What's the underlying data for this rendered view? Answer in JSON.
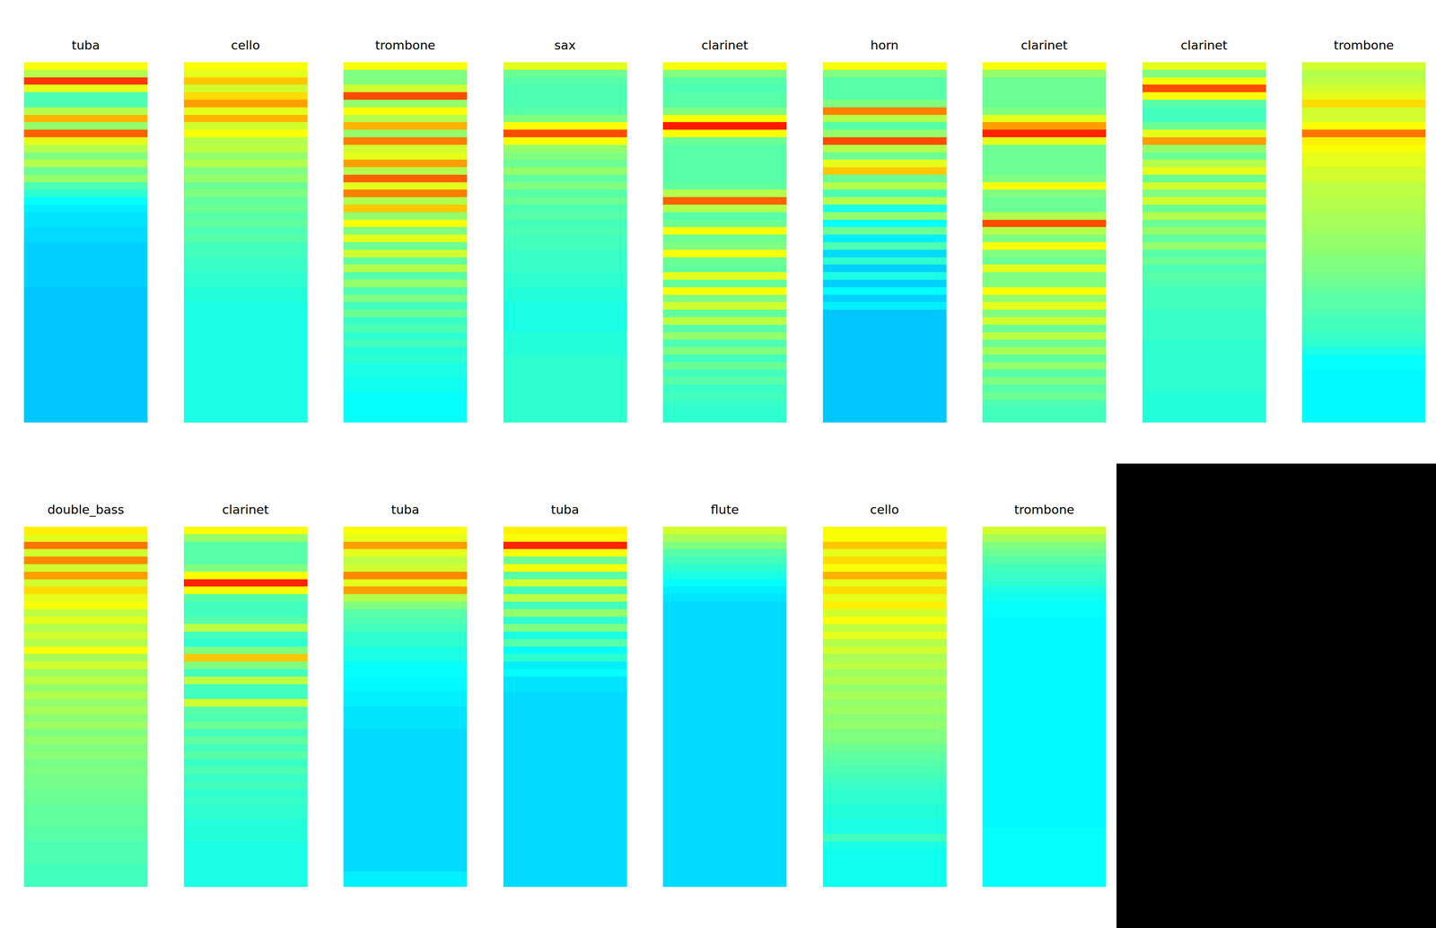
{
  "chart_data": [
    {
      "type": "heatmap",
      "title": "tuba",
      "zlim": [
        0,
        100
      ],
      "tick_labels": false,
      "values": [
        62,
        55,
        82,
        60,
        45,
        45,
        55,
        70,
        52,
        78,
        60,
        55,
        50,
        55,
        48,
        52,
        45,
        42,
        38,
        36,
        35,
        35,
        34,
        34,
        33,
        33,
        33,
        33,
        33,
        33,
        32,
        32,
        32,
        32,
        32,
        32,
        32,
        32,
        32,
        32,
        32,
        32,
        32,
        32,
        32,
        32,
        32,
        32
      ]
    },
    {
      "type": "heatmap",
      "title": "cello",
      "zlim": [
        0,
        100
      ],
      "tick_labels": false,
      "values": [
        62,
        60,
        68,
        58,
        66,
        72,
        60,
        70,
        58,
        62,
        55,
        56,
        52,
        55,
        50,
        52,
        48,
        50,
        47,
        48,
        46,
        47,
        45,
        46,
        44,
        44,
        43,
        43,
        42,
        42,
        41,
        41,
        40,
        40,
        40,
        40,
        40,
        40,
        40,
        40,
        40,
        40,
        40,
        40,
        40,
        40,
        40,
        40
      ]
    },
    {
      "type": "heatmap",
      "title": "trombone",
      "zlim": [
        0,
        100
      ],
      "tick_labels": false,
      "values": [
        62,
        50,
        50,
        58,
        80,
        52,
        62,
        55,
        70,
        52,
        75,
        58,
        60,
        72,
        55,
        78,
        60,
        75,
        55,
        68,
        52,
        62,
        50,
        60,
        48,
        58,
        47,
        55,
        46,
        52,
        45,
        50,
        44,
        48,
        43,
        45,
        42,
        44,
        41,
        42,
        40,
        40,
        39,
        39,
        38,
        38,
        38,
        38
      ]
    },
    {
      "type": "heatmap",
      "title": "sax",
      "zlim": [
        0,
        100
      ],
      "tick_labels": false,
      "values": [
        60,
        48,
        46,
        45,
        45,
        45,
        46,
        50,
        62,
        80,
        62,
        52,
        50,
        48,
        52,
        47,
        50,
        46,
        48,
        45,
        46,
        44,
        45,
        44,
        44,
        43,
        43,
        43,
        42,
        42,
        41,
        41,
        40,
        40,
        40,
        40,
        41,
        41,
        41,
        42,
        42,
        42,
        42,
        42,
        42,
        42,
        42,
        42
      ]
    },
    {
      "type": "heatmap",
      "title": "clarinet",
      "zlim": [
        0,
        100
      ],
      "tick_labels": false,
      "values": [
        62,
        50,
        46,
        45,
        46,
        46,
        50,
        62,
        85,
        62,
        48,
        46,
        46,
        46,
        46,
        46,
        47,
        55,
        78,
        55,
        46,
        48,
        62,
        48,
        50,
        62,
        48,
        47,
        60,
        47,
        62,
        50,
        58,
        47,
        56,
        46,
        52,
        45,
        50,
        44,
        48,
        44,
        46,
        43,
        44,
        43,
        42,
        42
      ]
    },
    {
      "type": "heatmap",
      "title": "horn",
      "zlim": [
        0,
        100
      ],
      "tick_labels": false,
      "values": [
        62,
        50,
        46,
        46,
        46,
        50,
        75,
        55,
        46,
        52,
        80,
        55,
        48,
        60,
        68,
        48,
        55,
        45,
        55,
        40,
        52,
        38,
        48,
        36,
        45,
        34,
        42,
        33,
        40,
        33,
        38,
        33,
        36,
        32,
        32,
        32,
        32,
        32,
        32,
        32,
        32,
        32,
        32,
        32,
        32,
        32,
        32,
        32
      ]
    },
    {
      "type": "heatmap",
      "title": "clarinet",
      "zlim": [
        0,
        100
      ],
      "tick_labels": false,
      "values": [
        62,
        52,
        48,
        48,
        48,
        48,
        50,
        60,
        72,
        84,
        60,
        48,
        48,
        48,
        48,
        50,
        62,
        50,
        48,
        48,
        55,
        80,
        55,
        50,
        62,
        50,
        48,
        60,
        50,
        50,
        62,
        52,
        60,
        50,
        58,
        48,
        56,
        48,
        54,
        47,
        52,
        46,
        50,
        46,
        48,
        45,
        44,
        44
      ]
    },
    {
      "type": "heatmap",
      "title": "clarinet",
      "zlim": [
        0,
        100
      ],
      "tick_labels": false,
      "values": [
        60,
        50,
        62,
        80,
        62,
        46,
        44,
        44,
        48,
        60,
        72,
        52,
        48,
        55,
        60,
        48,
        58,
        50,
        58,
        48,
        55,
        48,
        52,
        47,
        52,
        46,
        48,
        45,
        46,
        45,
        44,
        44,
        44,
        43,
        43,
        43,
        43,
        42,
        42,
        42,
        42,
        42,
        42,
        42,
        41,
        41,
        41,
        41
      ]
    },
    {
      "type": "heatmap",
      "title": "trombone",
      "zlim": [
        0,
        100
      ],
      "tick_labels": false,
      "values": [
        58,
        55,
        56,
        58,
        60,
        66,
        58,
        58,
        62,
        76,
        64,
        62,
        60,
        60,
        58,
        58,
        56,
        56,
        55,
        55,
        54,
        54,
        53,
        52,
        52,
        51,
        50,
        50,
        49,
        48,
        47,
        46,
        46,
        45,
        44,
        44,
        43,
        42,
        40,
        38,
        38,
        37,
        37,
        37,
        37,
        37,
        37,
        37
      ]
    },
    {
      "type": "heatmap",
      "title": "double_bass",
      "zlim": [
        0,
        100
      ],
      "tick_labels": false,
      "values": [
        64,
        60,
        76,
        58,
        74,
        58,
        72,
        58,
        66,
        60,
        62,
        56,
        60,
        55,
        58,
        55,
        62,
        54,
        58,
        53,
        56,
        52,
        55,
        52,
        54,
        51,
        53,
        50,
        52,
        50,
        51,
        49,
        50,
        49,
        49,
        48,
        48,
        47,
        47,
        47,
        46,
        46,
        45,
        45,
        45,
        44,
        44,
        44
      ]
    },
    {
      "type": "heatmap",
      "title": "clarinet",
      "zlim": [
        0,
        100
      ],
      "tick_labels": false,
      "values": [
        62,
        52,
        46,
        46,
        46,
        50,
        62,
        84,
        62,
        46,
        44,
        44,
        46,
        56,
        44,
        42,
        50,
        68,
        50,
        44,
        56,
        44,
        44,
        58,
        46,
        45,
        48,
        44,
        47,
        44,
        46,
        43,
        45,
        43,
        44,
        42,
        43,
        42,
        42,
        41,
        41,
        41,
        40,
        40,
        40,
        40,
        40,
        40
      ]
    },
    {
      "type": "heatmap",
      "title": "tuba",
      "zlim": [
        0,
        100
      ],
      "tick_labels": false,
      "values": [
        62,
        60,
        72,
        60,
        56,
        58,
        74,
        60,
        72,
        55,
        50,
        46,
        45,
        44,
        42,
        42,
        40,
        40,
        38,
        38,
        37,
        37,
        36,
        36,
        35,
        35,
        35,
        34,
        34,
        34,
        34,
        34,
        34,
        34,
        34,
        34,
        34,
        34,
        34,
        34,
        34,
        34,
        34,
        34,
        34,
        34,
        36,
        36
      ]
    },
    {
      "type": "heatmap",
      "title": "tuba",
      "zlim": [
        0,
        100
      ],
      "tick_labels": false,
      "values": [
        64,
        62,
        84,
        62,
        48,
        62,
        46,
        58,
        44,
        56,
        44,
        52,
        42,
        50,
        40,
        46,
        38,
        42,
        36,
        38,
        35,
        35,
        34,
        34,
        34,
        34,
        34,
        34,
        34,
        34,
        34,
        34,
        34,
        34,
        34,
        34,
        34,
        34,
        34,
        34,
        34,
        34,
        34,
        34,
        34,
        34,
        34,
        34
      ]
    },
    {
      "type": "heatmap",
      "title": "flute",
      "zlim": [
        0,
        100
      ],
      "tick_labels": false,
      "values": [
        58,
        54,
        50,
        46,
        44,
        42,
        40,
        38,
        36,
        35,
        34,
        34,
        34,
        34,
        34,
        34,
        34,
        34,
        34,
        34,
        34,
        34,
        34,
        34,
        34,
        34,
        34,
        34,
        34,
        34,
        34,
        34,
        34,
        34,
        34,
        34,
        34,
        34,
        34,
        34,
        34,
        34,
        34,
        34,
        34,
        34,
        34,
        34
      ]
    },
    {
      "type": "heatmap",
      "title": "cello",
      "zlim": [
        0,
        100
      ],
      "tick_labels": false,
      "values": [
        62,
        62,
        68,
        60,
        66,
        62,
        70,
        60,
        66,
        60,
        64,
        58,
        62,
        56,
        60,
        55,
        58,
        54,
        56,
        53,
        55,
        52,
        54,
        52,
        53,
        51,
        52,
        50,
        50,
        48,
        47,
        46,
        45,
        44,
        43,
        42,
        42,
        41,
        41,
        40,
        40,
        44,
        40,
        39,
        39,
        39,
        39,
        39
      ]
    },
    {
      "type": "heatmap",
      "title": "trombone",
      "zlim": [
        0,
        100
      ],
      "tick_labels": false,
      "values": [
        58,
        54,
        50,
        48,
        46,
        44,
        43,
        42,
        40,
        39,
        38,
        38,
        37,
        37,
        37,
        37,
        37,
        37,
        37,
        37,
        37,
        37,
        37,
        37,
        37,
        37,
        37,
        37,
        37,
        37,
        37,
        37,
        37,
        37,
        37,
        37,
        37,
        37,
        37,
        37,
        38,
        38,
        38,
        38,
        38,
        38,
        38,
        38
      ]
    }
  ]
}
